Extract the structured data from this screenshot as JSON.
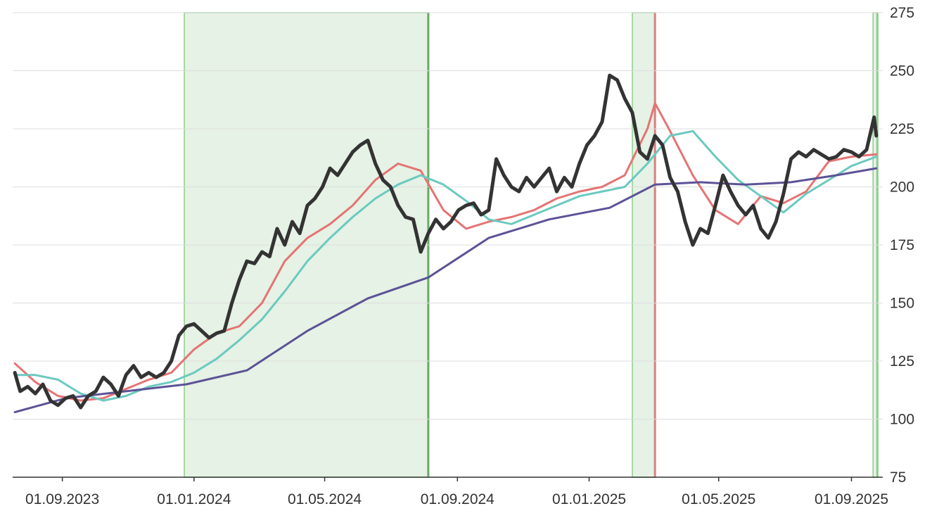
{
  "chart_data": {
    "type": "line",
    "title": "",
    "xlabel": "",
    "ylabel": "",
    "ylim": [
      75,
      275
    ],
    "xlim": [
      "2023-07-17",
      "2025-09-30"
    ],
    "y_ticks": [
      75,
      100,
      125,
      150,
      175,
      200,
      225,
      250,
      275
    ],
    "y_tick_labels": [
      "75",
      "100",
      "125",
      "150",
      "175",
      "200",
      "225",
      "250",
      "275"
    ],
    "x_ticks": [
      "2023-09-01",
      "2024-01-01",
      "2024-05-01",
      "2024-09-01",
      "2025-01-01",
      "2025-05-01",
      "2025-09-01"
    ],
    "x_tick_labels": [
      "01.09.2023",
      "01.01.2024",
      "01.05.2024",
      "01.09.2024",
      "01.01.2025",
      "01.05.2025",
      "01.09.2025"
    ],
    "grid": "horizontal",
    "y_axis_position": "right",
    "shaded_regions": [
      {
        "start": "2023-12-23",
        "end": "2024-08-05",
        "color": "#e5f2e5",
        "border": "#8ccc8c",
        "end_line": "#6aa96a"
      },
      {
        "start": "2025-02-10",
        "end": "2025-03-03",
        "color": "#e5f2e5",
        "border": "#8ccc8c",
        "end_line": "#d98080"
      },
      {
        "start": "2025-09-21",
        "end": "2025-09-25",
        "color": "#e5f2e5",
        "border": "#8ccc8c",
        "end_line": "#8ccc8c"
      }
    ],
    "series": [
      {
        "color": "#333333",
        "width": 5,
        "x": [
          "2023-07-19",
          "2023-07-24",
          "2023-07-31",
          "2023-08-07",
          "2023-08-14",
          "2023-08-21",
          "2023-08-28",
          "2023-09-04",
          "2023-09-11",
          "2023-09-18",
          "2023-09-25",
          "2023-10-02",
          "2023-10-09",
          "2023-10-16",
          "2023-10-23",
          "2023-10-30",
          "2023-11-06",
          "2023-11-13",
          "2023-11-20",
          "2023-11-27",
          "2023-12-04",
          "2023-12-11",
          "2023-12-18",
          "2023-12-25",
          "2024-01-01",
          "2024-01-08",
          "2024-01-15",
          "2024-01-22",
          "2024-01-29",
          "2024-02-05",
          "2024-02-12",
          "2024-02-19",
          "2024-02-26",
          "2024-03-04",
          "2024-03-11",
          "2024-03-18",
          "2024-03-25",
          "2024-04-01",
          "2024-04-08",
          "2024-04-15",
          "2024-04-22",
          "2024-04-29",
          "2024-05-06",
          "2024-05-13",
          "2024-05-20",
          "2024-05-27",
          "2024-06-03",
          "2024-06-10",
          "2024-06-17",
          "2024-06-24",
          "2024-07-01",
          "2024-07-08",
          "2024-07-15",
          "2024-07-22",
          "2024-07-29",
          "2024-08-05",
          "2024-08-12",
          "2024-08-19",
          "2024-08-26",
          "2024-09-02",
          "2024-09-09",
          "2024-09-16",
          "2024-09-23",
          "2024-09-30",
          "2024-10-07",
          "2024-10-14",
          "2024-10-21",
          "2024-10-28",
          "2024-11-04",
          "2024-11-11",
          "2024-11-18",
          "2024-11-25",
          "2024-12-02",
          "2024-12-09",
          "2024-12-16",
          "2024-12-23",
          "2024-12-30",
          "2025-01-06",
          "2025-01-13",
          "2025-01-20",
          "2025-01-27",
          "2025-02-03",
          "2025-02-10",
          "2025-02-17",
          "2025-02-24",
          "2025-03-03",
          "2025-03-10",
          "2025-03-17",
          "2025-03-24",
          "2025-03-31",
          "2025-04-07",
          "2025-04-14",
          "2025-04-21",
          "2025-04-28",
          "2025-05-05",
          "2025-05-12",
          "2025-05-19",
          "2025-05-26",
          "2025-06-02",
          "2025-06-09",
          "2025-06-16",
          "2025-06-23",
          "2025-06-30",
          "2025-07-07",
          "2025-07-14",
          "2025-07-21",
          "2025-07-28",
          "2025-08-04",
          "2025-08-11",
          "2025-08-18",
          "2025-08-25",
          "2025-09-01",
          "2025-09-08",
          "2025-09-15",
          "2025-09-22",
          "2025-09-24"
        ],
        "y": [
          120,
          112,
          114,
          111,
          115,
          108,
          106,
          109,
          110,
          105,
          110,
          112,
          118,
          115,
          110,
          119,
          123,
          118,
          120,
          118,
          120,
          125,
          136,
          140,
          141,
          138,
          135,
          137,
          138,
          150,
          160,
          168,
          167,
          172,
          170,
          182,
          175,
          185,
          180,
          192,
          195,
          200,
          208,
          205,
          210,
          215,
          218,
          220,
          210,
          203,
          200,
          192,
          187,
          186,
          172,
          180,
          186,
          182,
          185,
          190,
          192,
          193,
          188,
          190,
          212,
          205,
          200,
          198,
          204,
          200,
          204,
          208,
          198,
          204,
          200,
          210,
          218,
          222,
          228,
          248,
          246,
          238,
          232,
          215,
          212,
          222,
          218,
          204,
          198,
          185,
          175,
          182,
          180,
          192,
          205,
          198,
          192,
          188,
          192,
          182,
          178,
          185,
          197,
          212,
          215,
          213,
          216,
          214,
          212,
          213,
          216,
          215,
          213,
          216,
          230,
          222
        ]
      },
      {
        "color": "#e57373",
        "width": 3,
        "x": [
          "2023-07-19",
          "2023-08-07",
          "2023-08-28",
          "2023-09-18",
          "2023-10-09",
          "2023-10-30",
          "2023-11-20",
          "2023-12-11",
          "2024-01-01",
          "2024-01-22",
          "2024-02-12",
          "2024-03-04",
          "2024-03-25",
          "2024-04-15",
          "2024-05-06",
          "2024-05-27",
          "2024-06-17",
          "2024-07-08",
          "2024-07-29",
          "2024-08-19",
          "2024-09-09",
          "2024-09-30",
          "2024-10-21",
          "2024-11-11",
          "2024-12-02",
          "2024-12-23",
          "2025-01-13",
          "2025-02-03",
          "2025-02-24",
          "2025-03-03",
          "2025-03-17",
          "2025-04-07",
          "2025-04-28",
          "2025-05-19",
          "2025-06-09",
          "2025-06-30",
          "2025-07-21",
          "2025-08-11",
          "2025-09-01",
          "2025-09-24"
        ],
        "y": [
          124,
          116,
          110,
          108,
          109,
          113,
          117,
          120,
          130,
          137,
          140,
          150,
          168,
          178,
          184,
          192,
          203,
          210,
          207,
          190,
          182,
          185,
          187,
          190,
          195,
          198,
          200,
          205,
          225,
          236,
          224,
          205,
          190,
          184,
          196,
          193,
          198,
          211,
          213,
          214
        ]
      },
      {
        "color": "#6cc9c0",
        "width": 3,
        "x": [
          "2023-07-19",
          "2023-08-07",
          "2023-08-28",
          "2023-09-18",
          "2023-10-09",
          "2023-10-30",
          "2023-11-20",
          "2023-12-11",
          "2024-01-01",
          "2024-01-22",
          "2024-02-12",
          "2024-03-04",
          "2024-03-25",
          "2024-04-15",
          "2024-05-06",
          "2024-05-27",
          "2024-06-17",
          "2024-07-08",
          "2024-07-29",
          "2024-08-19",
          "2024-09-09",
          "2024-09-30",
          "2024-10-21",
          "2024-11-11",
          "2024-12-02",
          "2024-12-23",
          "2025-01-13",
          "2025-02-03",
          "2025-02-24",
          "2025-03-17",
          "2025-04-07",
          "2025-04-28",
          "2025-05-19",
          "2025-06-09",
          "2025-06-30",
          "2025-07-21",
          "2025-08-11",
          "2025-09-01",
          "2025-09-24"
        ],
        "y": [
          119,
          119,
          117,
          111,
          108,
          110,
          114,
          116,
          120,
          126,
          134,
          143,
          155,
          168,
          178,
          187,
          195,
          201,
          205,
          201,
          194,
          186,
          184,
          188,
          192,
          196,
          198,
          200,
          210,
          222,
          224,
          213,
          203,
          196,
          189,
          197,
          203,
          209,
          213
        ]
      },
      {
        "color": "#5c5296",
        "width": 3,
        "x": [
          "2023-07-19",
          "2023-09-04",
          "2023-10-30",
          "2023-12-25",
          "2024-02-19",
          "2024-04-15",
          "2024-06-10",
          "2024-08-05",
          "2024-09-30",
          "2024-11-25",
          "2025-01-20",
          "2025-03-03",
          "2025-04-14",
          "2025-05-26",
          "2025-07-07",
          "2025-08-18",
          "2025-09-24"
        ],
        "y": [
          103,
          109,
          112,
          115,
          121,
          138,
          152,
          161,
          178,
          186,
          191,
          201,
          202,
          201,
          202,
          205,
          208
        ]
      }
    ]
  }
}
